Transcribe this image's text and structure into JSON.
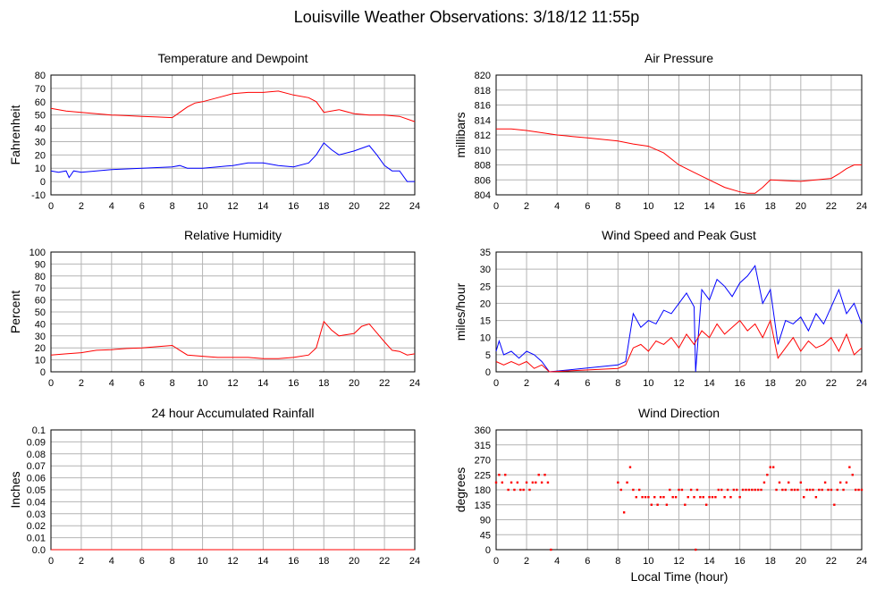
{
  "page": {
    "title": "Louisville Weather Observations: 3/18/12 11:55p",
    "x_axis_label": "Local Time (hour)"
  },
  "colors": {
    "red": "#ff0000",
    "blue": "#0000ff",
    "grid": "#b4b4b4",
    "axis": "#000000"
  },
  "chart_data": [
    {
      "id": "temp",
      "type": "line",
      "title": "Temperature and Dewpoint",
      "ylabel": "Fahrenheit",
      "xlabel": "",
      "xlim": [
        0,
        24
      ],
      "ylim": [
        -10,
        80
      ],
      "xticks": [
        0,
        2,
        4,
        6,
        8,
        10,
        12,
        14,
        16,
        18,
        20,
        22,
        24
      ],
      "yticks": [
        -10,
        0,
        10,
        20,
        30,
        40,
        50,
        60,
        70,
        80
      ],
      "grid": true,
      "series": [
        {
          "color": "#ff0000",
          "x": [
            0,
            1,
            2,
            3,
            4,
            5,
            6,
            7,
            8,
            8.5,
            9,
            9.5,
            10,
            11,
            12,
            13,
            14,
            15,
            16,
            17,
            17.5,
            18,
            19,
            20,
            21,
            22,
            23,
            24
          ],
          "y": [
            55,
            53,
            52,
            51,
            50,
            49.5,
            49,
            48.5,
            48,
            52,
            56,
            59,
            60,
            63,
            66,
            67,
            67,
            68,
            65,
            63,
            60,
            52,
            54,
            51,
            50,
            50,
            49,
            45
          ]
        },
        {
          "color": "#0000ff",
          "x": [
            0,
            0.5,
            1,
            1.2,
            1.5,
            2,
            3,
            4,
            5,
            6,
            7,
            8,
            8.5,
            9,
            10,
            11,
            12,
            13,
            14,
            15,
            16,
            17,
            17.5,
            18,
            18.5,
            19,
            20,
            21,
            21.5,
            22,
            22.5,
            23,
            23.5,
            24
          ],
          "y": [
            8,
            7,
            8,
            3,
            8,
            7,
            8,
            9,
            9.5,
            10,
            10.5,
            11,
            12,
            10,
            10,
            11,
            12,
            14,
            14,
            12,
            11,
            14,
            20,
            29,
            24,
            20,
            23,
            27,
            20,
            12,
            8,
            8,
            0,
            0
          ]
        }
      ]
    },
    {
      "id": "pressure",
      "type": "line",
      "title": "Air Pressure",
      "ylabel": "millibars",
      "xlabel": "",
      "xlim": [
        0,
        24
      ],
      "ylim": [
        804,
        820
      ],
      "xticks": [
        0,
        2,
        4,
        6,
        8,
        10,
        12,
        14,
        16,
        18,
        20,
        22,
        24
      ],
      "yticks": [
        804,
        806,
        808,
        810,
        812,
        814,
        816,
        818,
        820
      ],
      "grid": true,
      "series": [
        {
          "color": "#ff0000",
          "x": [
            0,
            1,
            2,
            3,
            4,
            5,
            6,
            7,
            8,
            9,
            10,
            11,
            12,
            13,
            14,
            15,
            16,
            16.5,
            17,
            17.5,
            18,
            19,
            20,
            21,
            22,
            22.5,
            23,
            23.5,
            24
          ],
          "y": [
            812.8,
            812.8,
            812.6,
            812.3,
            812,
            811.8,
            811.6,
            811.4,
            811.2,
            810.8,
            810.5,
            809.6,
            808,
            807,
            806,
            805,
            804.4,
            804.2,
            804.2,
            805,
            806,
            805.9,
            805.8,
            806,
            806.2,
            806.8,
            807.5,
            808,
            808
          ]
        }
      ]
    },
    {
      "id": "humidity",
      "type": "line",
      "title": "Relative Humidity",
      "ylabel": "Percent",
      "xlabel": "",
      "xlim": [
        0,
        24
      ],
      "ylim": [
        0,
        100
      ],
      "xticks": [
        0,
        2,
        4,
        6,
        8,
        10,
        12,
        14,
        16,
        18,
        20,
        22,
        24
      ],
      "yticks": [
        0,
        10,
        20,
        30,
        40,
        50,
        60,
        70,
        80,
        90,
        100
      ],
      "grid": true,
      "series": [
        {
          "color": "#ff0000",
          "x": [
            0,
            1,
            2,
            3,
            4,
            5,
            6,
            7,
            8,
            8.5,
            9,
            10,
            11,
            12,
            13,
            14,
            15,
            16,
            17,
            17.5,
            18,
            18.5,
            19,
            20,
            20.5,
            21,
            22,
            22.5,
            23,
            23.5,
            24
          ],
          "y": [
            14,
            15,
            16,
            18,
            18.5,
            19.5,
            20,
            21,
            22,
            18,
            14,
            13,
            12,
            12,
            12,
            11,
            11,
            12,
            14,
            20,
            42,
            35,
            30,
            32,
            38,
            40,
            25,
            18,
            17,
            14,
            15
          ]
        }
      ]
    },
    {
      "id": "wind",
      "type": "line",
      "title": "Wind Speed and Peak Gust",
      "ylabel": "miles/hour",
      "xlabel": "",
      "xlim": [
        0,
        24
      ],
      "ylim": [
        0,
        35
      ],
      "xticks": [
        0,
        2,
        4,
        6,
        8,
        10,
        12,
        14,
        16,
        18,
        20,
        22,
        24
      ],
      "yticks": [
        0,
        5,
        10,
        15,
        20,
        25,
        30,
        35
      ],
      "grid": true,
      "series": [
        {
          "color": "#0000ff",
          "x": [
            0,
            0.2,
            0.5,
            1,
            1.5,
            2,
            2.5,
            3,
            3.5,
            8,
            8.5,
            9,
            9.5,
            10,
            10.5,
            11,
            11.5,
            12,
            12.5,
            13,
            13.1,
            13.5,
            14,
            14.5,
            15,
            15.5,
            16,
            16.5,
            17,
            17.5,
            18,
            18.5,
            19,
            19.5,
            20,
            20.5,
            21,
            21.5,
            22,
            22.5,
            23,
            23.5,
            24
          ],
          "y": [
            6,
            9,
            5,
            6,
            4,
            6,
            5,
            3,
            0,
            2,
            3,
            17,
            13,
            15,
            14,
            18,
            17,
            20,
            23,
            19,
            0,
            24,
            21,
            27,
            25,
            22,
            26,
            28,
            31,
            20,
            24,
            8,
            15,
            14,
            16,
            12,
            17,
            14,
            19,
            24,
            17,
            20,
            14
          ]
        },
        {
          "color": "#ff0000",
          "x": [
            0,
            0.5,
            1,
            1.5,
            2,
            2.5,
            3,
            3.5,
            8,
            8.5,
            9,
            9.5,
            10,
            10.5,
            11,
            11.5,
            12,
            12.5,
            13,
            13.5,
            14,
            14.5,
            15,
            15.5,
            16,
            16.5,
            17,
            17.5,
            18,
            18.5,
            19,
            19.5,
            20,
            20.5,
            21,
            21.5,
            22,
            22.5,
            23,
            23.5,
            24
          ],
          "y": [
            3,
            2,
            3,
            2,
            3,
            1,
            2,
            0,
            1,
            2,
            7,
            8,
            6,
            9,
            8,
            10,
            7,
            11,
            8,
            12,
            10,
            14,
            11,
            13,
            15,
            12,
            14,
            10,
            15,
            4,
            7,
            10,
            6,
            9,
            7,
            8,
            10,
            6,
            11,
            5,
            7
          ]
        }
      ]
    },
    {
      "id": "rain",
      "type": "line",
      "title": "24 hour Accumulated Rainfall",
      "ylabel": "Inches",
      "xlabel": "",
      "xlim": [
        0,
        24
      ],
      "ylim": [
        0,
        0.1
      ],
      "xticks": [
        0,
        2,
        4,
        6,
        8,
        10,
        12,
        14,
        16,
        18,
        20,
        22,
        24
      ],
      "yticks": [
        0.0,
        0.01,
        0.02,
        0.03,
        0.04,
        0.05,
        0.06,
        0.07,
        0.08,
        0.09,
        0.1
      ],
      "ytick_labels": [
        "0.0",
        "0.01",
        "0.02",
        "0.03",
        "0.04",
        "0.05",
        "0.06",
        "0.07",
        "0.08",
        "0.09",
        "0.1"
      ],
      "grid": true,
      "series": [
        {
          "color": "#ff0000",
          "x": [
            0,
            24
          ],
          "y": [
            0,
            0
          ]
        }
      ]
    },
    {
      "id": "direction",
      "type": "scatter",
      "title": "Wind Direction",
      "ylabel": "degrees",
      "xlabel": "Local Time (hour)",
      "xlim": [
        0,
        24
      ],
      "ylim": [
        0,
        360
      ],
      "xticks": [
        0,
        2,
        4,
        6,
        8,
        10,
        12,
        14,
        16,
        18,
        20,
        22,
        24
      ],
      "yticks": [
        0,
        45,
        90,
        135,
        180,
        225,
        270,
        315,
        360
      ],
      "grid": true,
      "series": [
        {
          "color": "#ff0000",
          "x": [
            0,
            0.2,
            0.4,
            0.6,
            0.8,
            1.0,
            1.2,
            1.4,
            1.6,
            1.8,
            2.0,
            2.2,
            2.4,
            2.6,
            2.8,
            3.0,
            3.2,
            3.4,
            3.6,
            8.0,
            8.2,
            8.4,
            8.6,
            8.8,
            9.0,
            9.2,
            9.4,
            9.6,
            9.8,
            10.0,
            10.2,
            10.4,
            10.6,
            10.8,
            11.0,
            11.2,
            11.4,
            11.6,
            11.8,
            12.0,
            12.2,
            12.4,
            12.6,
            12.8,
            13.0,
            13.1,
            13.2,
            13.4,
            13.6,
            13.8,
            14.0,
            14.2,
            14.4,
            14.6,
            14.8,
            15.0,
            15.2,
            15.4,
            15.6,
            15.8,
            16.0,
            16.2,
            16.4,
            16.6,
            16.8,
            17.0,
            17.2,
            17.4,
            17.6,
            17.8,
            18.0,
            18.2,
            18.4,
            18.6,
            18.8,
            19.0,
            19.2,
            19.4,
            19.6,
            19.8,
            20.0,
            20.2,
            20.4,
            20.6,
            20.8,
            21.0,
            21.2,
            21.4,
            21.6,
            21.8,
            22.0,
            22.2,
            22.4,
            22.6,
            22.8,
            23.0,
            23.2,
            23.4,
            23.6,
            23.8,
            24.0
          ],
          "y": [
            202,
            225,
            202,
            225,
            180,
            202,
            180,
            202,
            180,
            180,
            202,
            180,
            202,
            202,
            225,
            202,
            225,
            202,
            0,
            202,
            180,
            112,
            202,
            248,
            180,
            158,
            180,
            158,
            158,
            158,
            135,
            158,
            135,
            158,
            158,
            135,
            180,
            158,
            158,
            180,
            180,
            135,
            158,
            180,
            158,
            0,
            180,
            158,
            158,
            135,
            158,
            158,
            158,
            180,
            180,
            158,
            180,
            158,
            180,
            180,
            158,
            180,
            180,
            180,
            180,
            180,
            180,
            180,
            202,
            225,
            248,
            248,
            180,
            202,
            180,
            180,
            202,
            180,
            180,
            180,
            202,
            158,
            180,
            180,
            180,
            158,
            180,
            180,
            202,
            180,
            180,
            135,
            180,
            202,
            180,
            202,
            248,
            225,
            180,
            180,
            180
          ]
        }
      ]
    }
  ]
}
